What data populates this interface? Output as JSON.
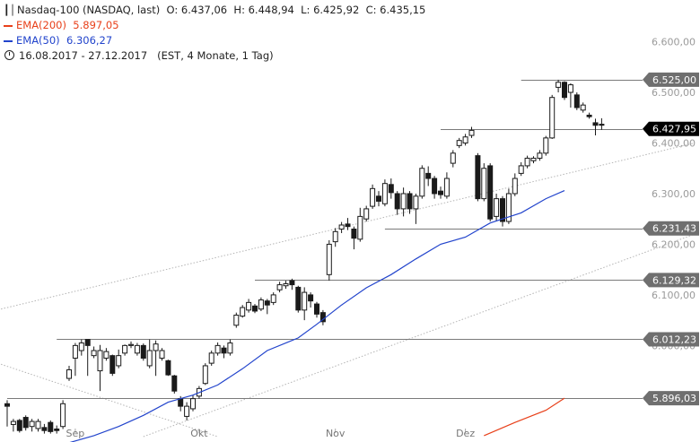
{
  "header": {
    "title": "Nasdaq-100 (NASDAQ, last)",
    "ohlc": "O: 6.437,06  H: 6.448,94  L: 6.425,92  C: 6.435,15",
    "ema200_label": "EMA(200)",
    "ema200_value": "5.897,05",
    "ema50_label": "EMA(50)",
    "ema50_value": "6.306,27",
    "range": "16.08.2017 - 27.12.2017",
    "range_detail": "(EST, 4 Monate, 1 Tag)"
  },
  "chart_data": {
    "type": "candlestick",
    "title": "Nasdaq-100 (NASDAQ, last)",
    "ylim": [
      5820,
      6640
    ],
    "y_ticks": [
      {
        "value": 6600,
        "label": "6.600,00"
      },
      {
        "value": 6500,
        "label": "6.500,00"
      },
      {
        "value": 6400,
        "label": "6.400,00"
      },
      {
        "value": 6300,
        "label": "6.300,00"
      },
      {
        "value": 6200,
        "label": "6.200,00"
      },
      {
        "value": 6100,
        "label": "6.100,00"
      },
      {
        "value": 6000,
        "label": "6.000,00"
      }
    ],
    "x_ticks": [
      {
        "index": 11,
        "label": "Sep"
      },
      {
        "index": 31,
        "label": "Okt"
      },
      {
        "index": 53,
        "label": "Nov"
      },
      {
        "index": 74,
        "label": "Dez"
      }
    ],
    "levels": [
      {
        "value": 6525.0,
        "label": "6.525,00",
        "from_index": 83
      },
      {
        "value": 6427.95,
        "label": "6.427,95",
        "from_index": 70,
        "highlight": true
      },
      {
        "value": 6231.43,
        "label": "6.231,43",
        "from_index": 61
      },
      {
        "value": 6129.32,
        "label": "6.129,32",
        "from_index": 40
      },
      {
        "value": 6012.23,
        "label": "6.012,23",
        "from_index": 8
      },
      {
        "value": 5896.03,
        "label": "5.896,03",
        "from_index": 0
      }
    ],
    "trendlines": [
      {
        "from": {
          "index": -1,
          "value": 6072
        },
        "to": {
          "index": 111,
          "value": 6400
        }
      },
      {
        "from": {
          "index": 22,
          "value": 5820
        },
        "to": {
          "index": 111,
          "value": 6220
        }
      },
      {
        "from": {
          "index": -1,
          "value": 5963
        },
        "to": {
          "index": 34,
          "value": 5820
        }
      }
    ],
    "series": [
      {
        "name": "EMA(200)",
        "color": "#e8401a",
        "points": [
          [
            77,
            5822
          ],
          [
            82,
            5848
          ],
          [
            87,
            5872
          ],
          [
            90,
            5896
          ]
        ]
      },
      {
        "name": "EMA(50)",
        "color": "#2244cc",
        "points": [
          [
            10,
            5808
          ],
          [
            14,
            5822
          ],
          [
            18,
            5840
          ],
          [
            22,
            5862
          ],
          [
            26,
            5888
          ],
          [
            30,
            5902
          ],
          [
            34,
            5922
          ],
          [
            38,
            5954
          ],
          [
            42,
            5990
          ],
          [
            47,
            6015
          ],
          [
            50,
            6042
          ],
          [
            54,
            6080
          ],
          [
            58,
            6114
          ],
          [
            62,
            6140
          ],
          [
            66,
            6171
          ],
          [
            70,
            6200
          ],
          [
            74,
            6214
          ],
          [
            78,
            6242
          ],
          [
            83,
            6262
          ],
          [
            87,
            6290
          ],
          [
            90,
            6306
          ]
        ]
      }
    ],
    "candles": [
      [
        5885,
        5880,
        5892,
        5840
      ],
      [
        5844,
        5850,
        5855,
        5830
      ],
      [
        5852,
        5832,
        5855,
        5828
      ],
      [
        5858,
        5838,
        5862,
        5832
      ],
      [
        5840,
        5850,
        5855,
        5830
      ],
      [
        5836,
        5850,
        5855,
        5830
      ],
      [
        5838,
        5832,
        5845,
        5826
      ],
      [
        5848,
        5830,
        5852,
        5826
      ],
      [
        5835,
        5832,
        5842,
        5826
      ],
      [
        5840,
        5885,
        5892,
        5835
      ],
      [
        5935,
        5952,
        5960,
        5930
      ],
      [
        5975,
        6000,
        6005,
        5940
      ],
      [
        5990,
        6005,
        6012,
        5980
      ],
      [
        6012,
        6000,
        6012,
        5940
      ],
      [
        5980,
        5990,
        5998,
        5975
      ],
      [
        5950,
        5990,
        6001,
        5910
      ],
      [
        5975,
        5988,
        5995,
        5970
      ],
      [
        5980,
        5945,
        5982,
        5940
      ],
      [
        5960,
        5980,
        5992,
        5955
      ],
      [
        5985,
        6000,
        6002,
        5980
      ],
      [
        6000,
        6002,
        6008,
        5995
      ],
      [
        5985,
        6000,
        6005,
        5980
      ],
      [
        6000,
        5975,
        6004,
        5970
      ],
      [
        5960,
        5990,
        6012,
        5955
      ],
      [
        5990,
        6003,
        6010,
        5940
      ],
      [
        5975,
        5990,
        5995,
        5970
      ],
      [
        5970,
        5942,
        5972,
        5940
      ],
      [
        5940,
        5910,
        5942,
        5905
      ],
      [
        5895,
        5880,
        5900,
        5870
      ],
      [
        5860,
        5880,
        5888,
        5852
      ],
      [
        5875,
        5895,
        5902,
        5870
      ],
      [
        5900,
        5915,
        5920,
        5895
      ],
      [
        5925,
        5960,
        5965,
        5922
      ],
      [
        5965,
        5985,
        5990,
        5960
      ],
      [
        5985,
        6000,
        6006,
        5980
      ],
      [
        5995,
        5985,
        6000,
        5975
      ],
      [
        5985,
        6005,
        6012,
        5980
      ],
      [
        6040,
        6060,
        6065,
        6035
      ],
      [
        6058,
        6075,
        6080,
        6055
      ],
      [
        6070,
        6085,
        6092,
        6065
      ],
      [
        6078,
        6068,
        6082,
        6064
      ],
      [
        6072,
        6090,
        6095,
        6068
      ],
      [
        6088,
        6080,
        6092,
        6062
      ],
      [
        6085,
        6100,
        6105,
        6080
      ],
      [
        6110,
        6120,
        6126,
        6105
      ],
      [
        6118,
        6122,
        6128,
        6112
      ],
      [
        6128,
        6120,
        6132,
        6110
      ],
      [
        6115,
        6070,
        6118,
        6065
      ],
      [
        6070,
        6105,
        6115,
        6050
      ],
      [
        6100,
        6088,
        6105,
        6075
      ],
      [
        6082,
        6062,
        6086,
        6055
      ],
      [
        6065,
        6047,
        6070,
        6040
      ],
      [
        6140,
        6200,
        6208,
        6128
      ],
      [
        6205,
        6225,
        6232,
        6195
      ],
      [
        6230,
        6238,
        6244,
        6222
      ],
      [
        6240,
        6235,
        6252,
        6228
      ],
      [
        6230,
        6212,
        6235,
        6190
      ],
      [
        6210,
        6255,
        6272,
        6205
      ],
      [
        6250,
        6270,
        6276,
        6245
      ],
      [
        6275,
        6310,
        6318,
        6270
      ],
      [
        6295,
        6285,
        6305,
        6275
      ],
      [
        6280,
        6320,
        6328,
        6275
      ],
      [
        6318,
        6302,
        6330,
        6290
      ],
      [
        6300,
        6270,
        6305,
        6258
      ],
      [
        6270,
        6300,
        6312,
        6255
      ],
      [
        6300,
        6270,
        6305,
        6260
      ],
      [
        6270,
        6295,
        6300,
        6240
      ],
      [
        6295,
        6350,
        6356,
        6290
      ],
      [
        6340,
        6330,
        6354,
        6315
      ],
      [
        6330,
        6300,
        6335,
        6290
      ],
      [
        6305,
        6298,
        6314,
        6290
      ],
      [
        6295,
        6330,
        6342,
        6290
      ],
      [
        6360,
        6380,
        6386,
        6352
      ],
      [
        6395,
        6405,
        6410,
        6390
      ],
      [
        6400,
        6412,
        6418,
        6395
      ],
      [
        6415,
        6425,
        6432,
        6410
      ],
      [
        6375,
        6290,
        6380,
        6285
      ],
      [
        6290,
        6350,
        6360,
        6285
      ],
      [
        6355,
        6250,
        6360,
        6245
      ],
      [
        6255,
        6290,
        6300,
        6245
      ],
      [
        6290,
        6245,
        6295,
        6235
      ],
      [
        6245,
        6300,
        6310,
        6240
      ],
      [
        6300,
        6330,
        6340,
        6295
      ],
      [
        6340,
        6355,
        6362,
        6335
      ],
      [
        6355,
        6370,
        6375,
        6350
      ],
      [
        6365,
        6370,
        6374,
        6360
      ],
      [
        6370,
        6380,
        6386,
        6365
      ],
      [
        6380,
        6410,
        6414,
        6375
      ],
      [
        6410,
        6490,
        6495,
        6408
      ],
      [
        6510,
        6520,
        6525,
        6500
      ],
      [
        6520,
        6490,
        6522,
        6485
      ],
      [
        6500,
        6515,
        6518,
        6470
      ],
      [
        6495,
        6470,
        6500,
        6465
      ],
      [
        6465,
        6475,
        6480,
        6460
      ],
      [
        6455,
        6452,
        6460,
        6448
      ],
      [
        6440,
        6435,
        6448,
        6415
      ],
      [
        6437.06,
        6435.15,
        6448.94,
        6425.92
      ]
    ],
    "candle_colors": {
      "body": "#1a1a1a",
      "wick": "#1a1a1a",
      "hollow": "#ffffff"
    },
    "level_line_color": "#7a7a7a",
    "highlight_label_color": "#000000",
    "level_label_color": "#6f6f6f"
  }
}
